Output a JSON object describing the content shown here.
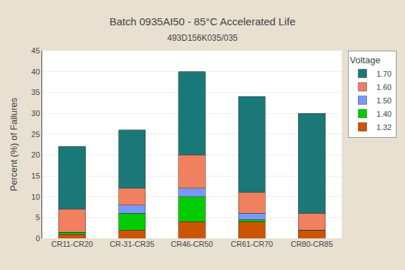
{
  "chart_data": {
    "type": "bar",
    "stacked": true,
    "title": "Batch 0935AI50 - 85°C Accelerated Life",
    "subtitle": "493D156K035/035",
    "ylabel": "Percent (%) of Failures",
    "legend_title": "Voltage",
    "categories": [
      "CR11-CR20",
      "CR-31-CR35",
      "CR46-CR50",
      "CR61-CR70",
      "CR80-CR85"
    ],
    "series": [
      {
        "name": "1.32",
        "color": "#CC5500",
        "values": [
          1.0,
          2.0,
          4.0,
          4.0,
          2.0
        ]
      },
      {
        "name": "1.40",
        "color": "#00CC00",
        "values": [
          0.5,
          4.0,
          6.0,
          0.5,
          0.0
        ]
      },
      {
        "name": "1.50",
        "color": "#7799FF",
        "values": [
          0.0,
          2.0,
          2.0,
          1.5,
          0.0
        ]
      },
      {
        "name": "1.60",
        "color": "#F08060",
        "values": [
          5.5,
          4.0,
          8.0,
          5.0,
          4.0
        ]
      },
      {
        "name": "1.70",
        "color": "#1A7878",
        "values": [
          15.0,
          14.0,
          20.0,
          23.0,
          24.0
        ]
      }
    ],
    "ylim": [
      0,
      45
    ],
    "yticks": [
      0,
      5,
      10,
      15,
      20,
      25,
      30,
      35,
      40,
      45
    ],
    "grid": true,
    "legend": "right"
  }
}
